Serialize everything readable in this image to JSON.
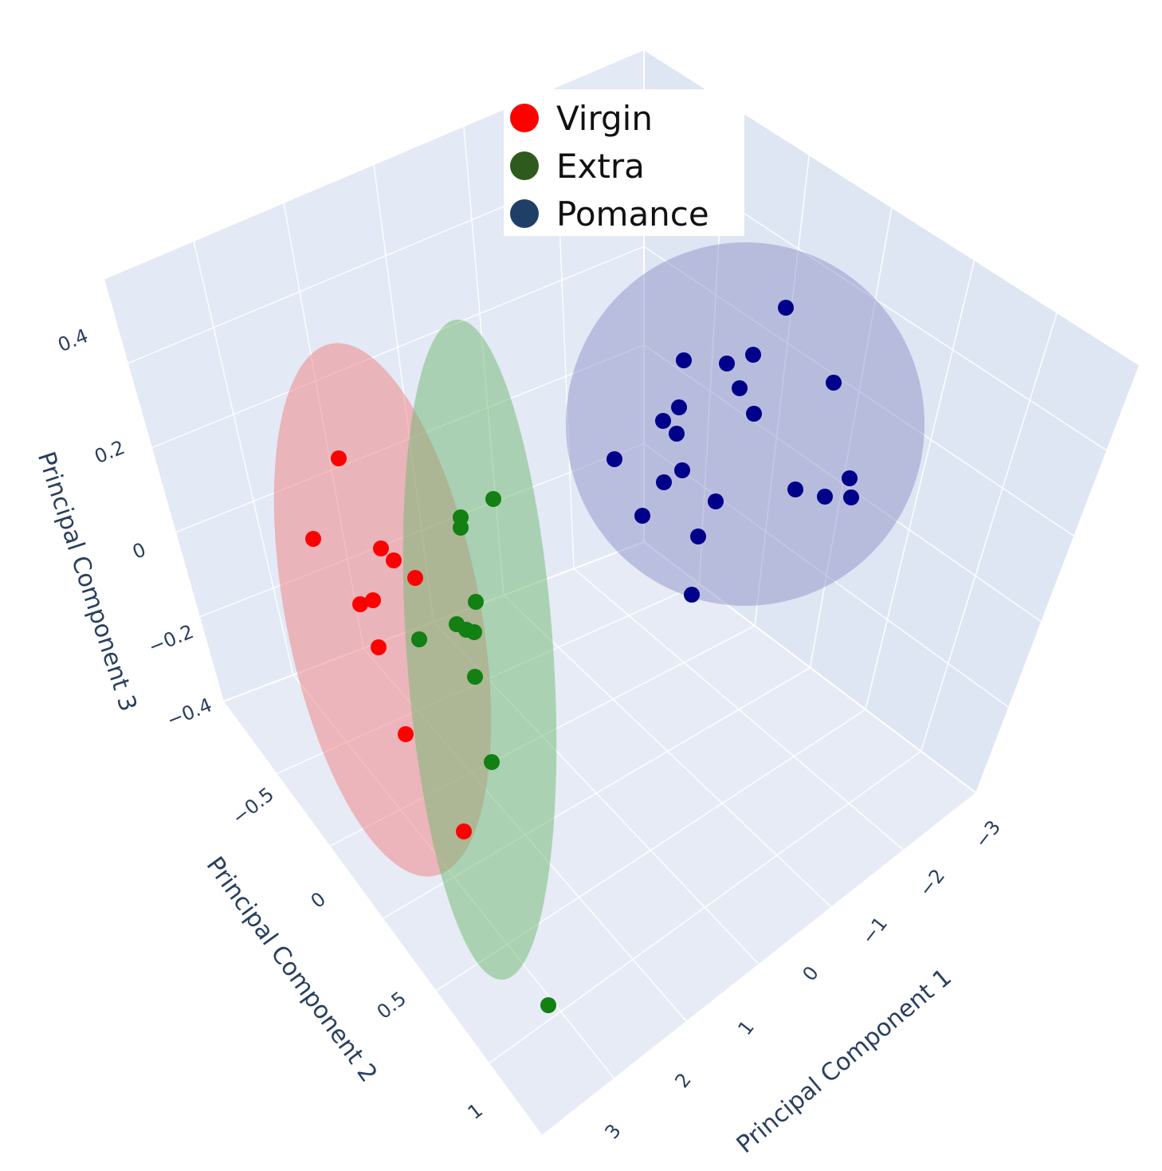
{
  "chart_data": {
    "type": "scatter",
    "projection": "3d",
    "legend": {
      "placement": "top-center",
      "items": [
        {
          "label": "Virgin",
          "color": "#ff0000"
        },
        {
          "label": "Extra",
          "color": "#2f5a1e"
        },
        {
          "label": "Pomance",
          "color": "#1f3f66"
        }
      ]
    },
    "axes": {
      "x": {
        "label": "Principal Component 1",
        "ticks": [
          "−3",
          "−2",
          "−1",
          "0",
          "1",
          "2",
          "3"
        ],
        "range": [
          -3,
          3
        ]
      },
      "y": {
        "label": "Principal Component 2",
        "ticks": [
          "−0.5",
          "0",
          "0.5",
          "1"
        ],
        "range": [
          -0.7,
          1.1
        ]
      },
      "z": {
        "label": "Principal Component 3",
        "ticks": [
          "0.4",
          "0.2",
          "0",
          "−0.2",
          "−0.4"
        ],
        "range": [
          -0.45,
          0.45
        ]
      }
    },
    "series": [
      {
        "name": "Virgin",
        "color": "#ff0000",
        "ellipse_color": "#f08080",
        "points": [
          {
            "x": -1.0,
            "y": -0.5,
            "z": 0.2
          },
          {
            "x": -1.3,
            "y": -0.3,
            "z": 0.02
          },
          {
            "x": -0.7,
            "y": -0.1,
            "z": 0.0
          },
          {
            "x": -0.6,
            "y": -0.05,
            "z": -0.02
          },
          {
            "x": -0.4,
            "y": 0.05,
            "z": -0.05
          },
          {
            "x": -0.9,
            "y": -0.05,
            "z": -0.1
          },
          {
            "x": -0.8,
            "y": 0.0,
            "z": -0.09
          },
          {
            "x": -0.6,
            "y": 0.15,
            "z": -0.16
          },
          {
            "x": -0.2,
            "y": 0.3,
            "z": -0.3
          },
          {
            "x": 0.6,
            "y": 0.5,
            "z": -0.4
          }
        ]
      },
      {
        "name": "Extra",
        "color": "#128012",
        "ellipse_color": "#6fb86f",
        "points": [
          {
            "x": 0.4,
            "y": -0.2,
            "z": 0.08
          },
          {
            "x": 0.1,
            "y": -0.1,
            "z": 0.05
          },
          {
            "x": 0.1,
            "y": -0.1,
            "z": 0.04
          },
          {
            "x": 0.2,
            "y": 0.1,
            "z": -0.08
          },
          {
            "x": 0.0,
            "y": 0.15,
            "z": -0.12
          },
          {
            "x": 0.1,
            "y": 0.15,
            "z": -0.13
          },
          {
            "x": 0.15,
            "y": 0.2,
            "z": -0.14
          },
          {
            "x": 0.1,
            "y": 0.3,
            "z": -0.2
          },
          {
            "x": 0.5,
            "y": 0.4,
            "z": -0.3
          },
          {
            "x": 1.2,
            "y": 0.9,
            "z": -0.45
          },
          {
            "x": -0.4,
            "y": 0.2,
            "z": -0.15
          }
        ]
      },
      {
        "name": "Pomance",
        "color": "#00008b",
        "ellipse_color": "#8f93c8",
        "points": [
          {
            "x": 2.4,
            "y": -0.6,
            "z": 0.42
          },
          {
            "x": 1.3,
            "y": -0.2,
            "z": 0.3
          },
          {
            "x": 1.8,
            "y": -0.3,
            "z": 0.3
          },
          {
            "x": 2.1,
            "y": -0.4,
            "z": 0.32
          },
          {
            "x": 2.9,
            "y": -0.4,
            "z": 0.28
          },
          {
            "x": 2.0,
            "y": -0.3,
            "z": 0.26
          },
          {
            "x": 1.2,
            "y": -0.1,
            "z": 0.2
          },
          {
            "x": 1.0,
            "y": -0.1,
            "z": 0.17
          },
          {
            "x": 1.1,
            "y": -0.05,
            "z": 0.15
          },
          {
            "x": 2.1,
            "y": -0.2,
            "z": 0.2
          },
          {
            "x": 0.4,
            "y": 0.0,
            "z": 0.1
          },
          {
            "x": 1.1,
            "y": 0.0,
            "z": 0.05
          },
          {
            "x": 1.0,
            "y": 0.05,
            "z": 0.03
          },
          {
            "x": 1.6,
            "y": 0.05,
            "z": 0.02
          },
          {
            "x": 2.6,
            "y": 0.0,
            "z": 0.05
          },
          {
            "x": 3.0,
            "y": 0.0,
            "z": 0.06
          },
          {
            "x": 2.9,
            "y": 0.05,
            "z": 0.0
          },
          {
            "x": 3.1,
            "y": 0.0,
            "z": 0.0
          },
          {
            "x": 0.8,
            "y": 0.2,
            "z": -0.05
          },
          {
            "x": 1.4,
            "y": 0.2,
            "z": -0.08
          },
          {
            "x": 1.5,
            "y": 0.3,
            "z": -0.18
          }
        ]
      }
    ]
  }
}
